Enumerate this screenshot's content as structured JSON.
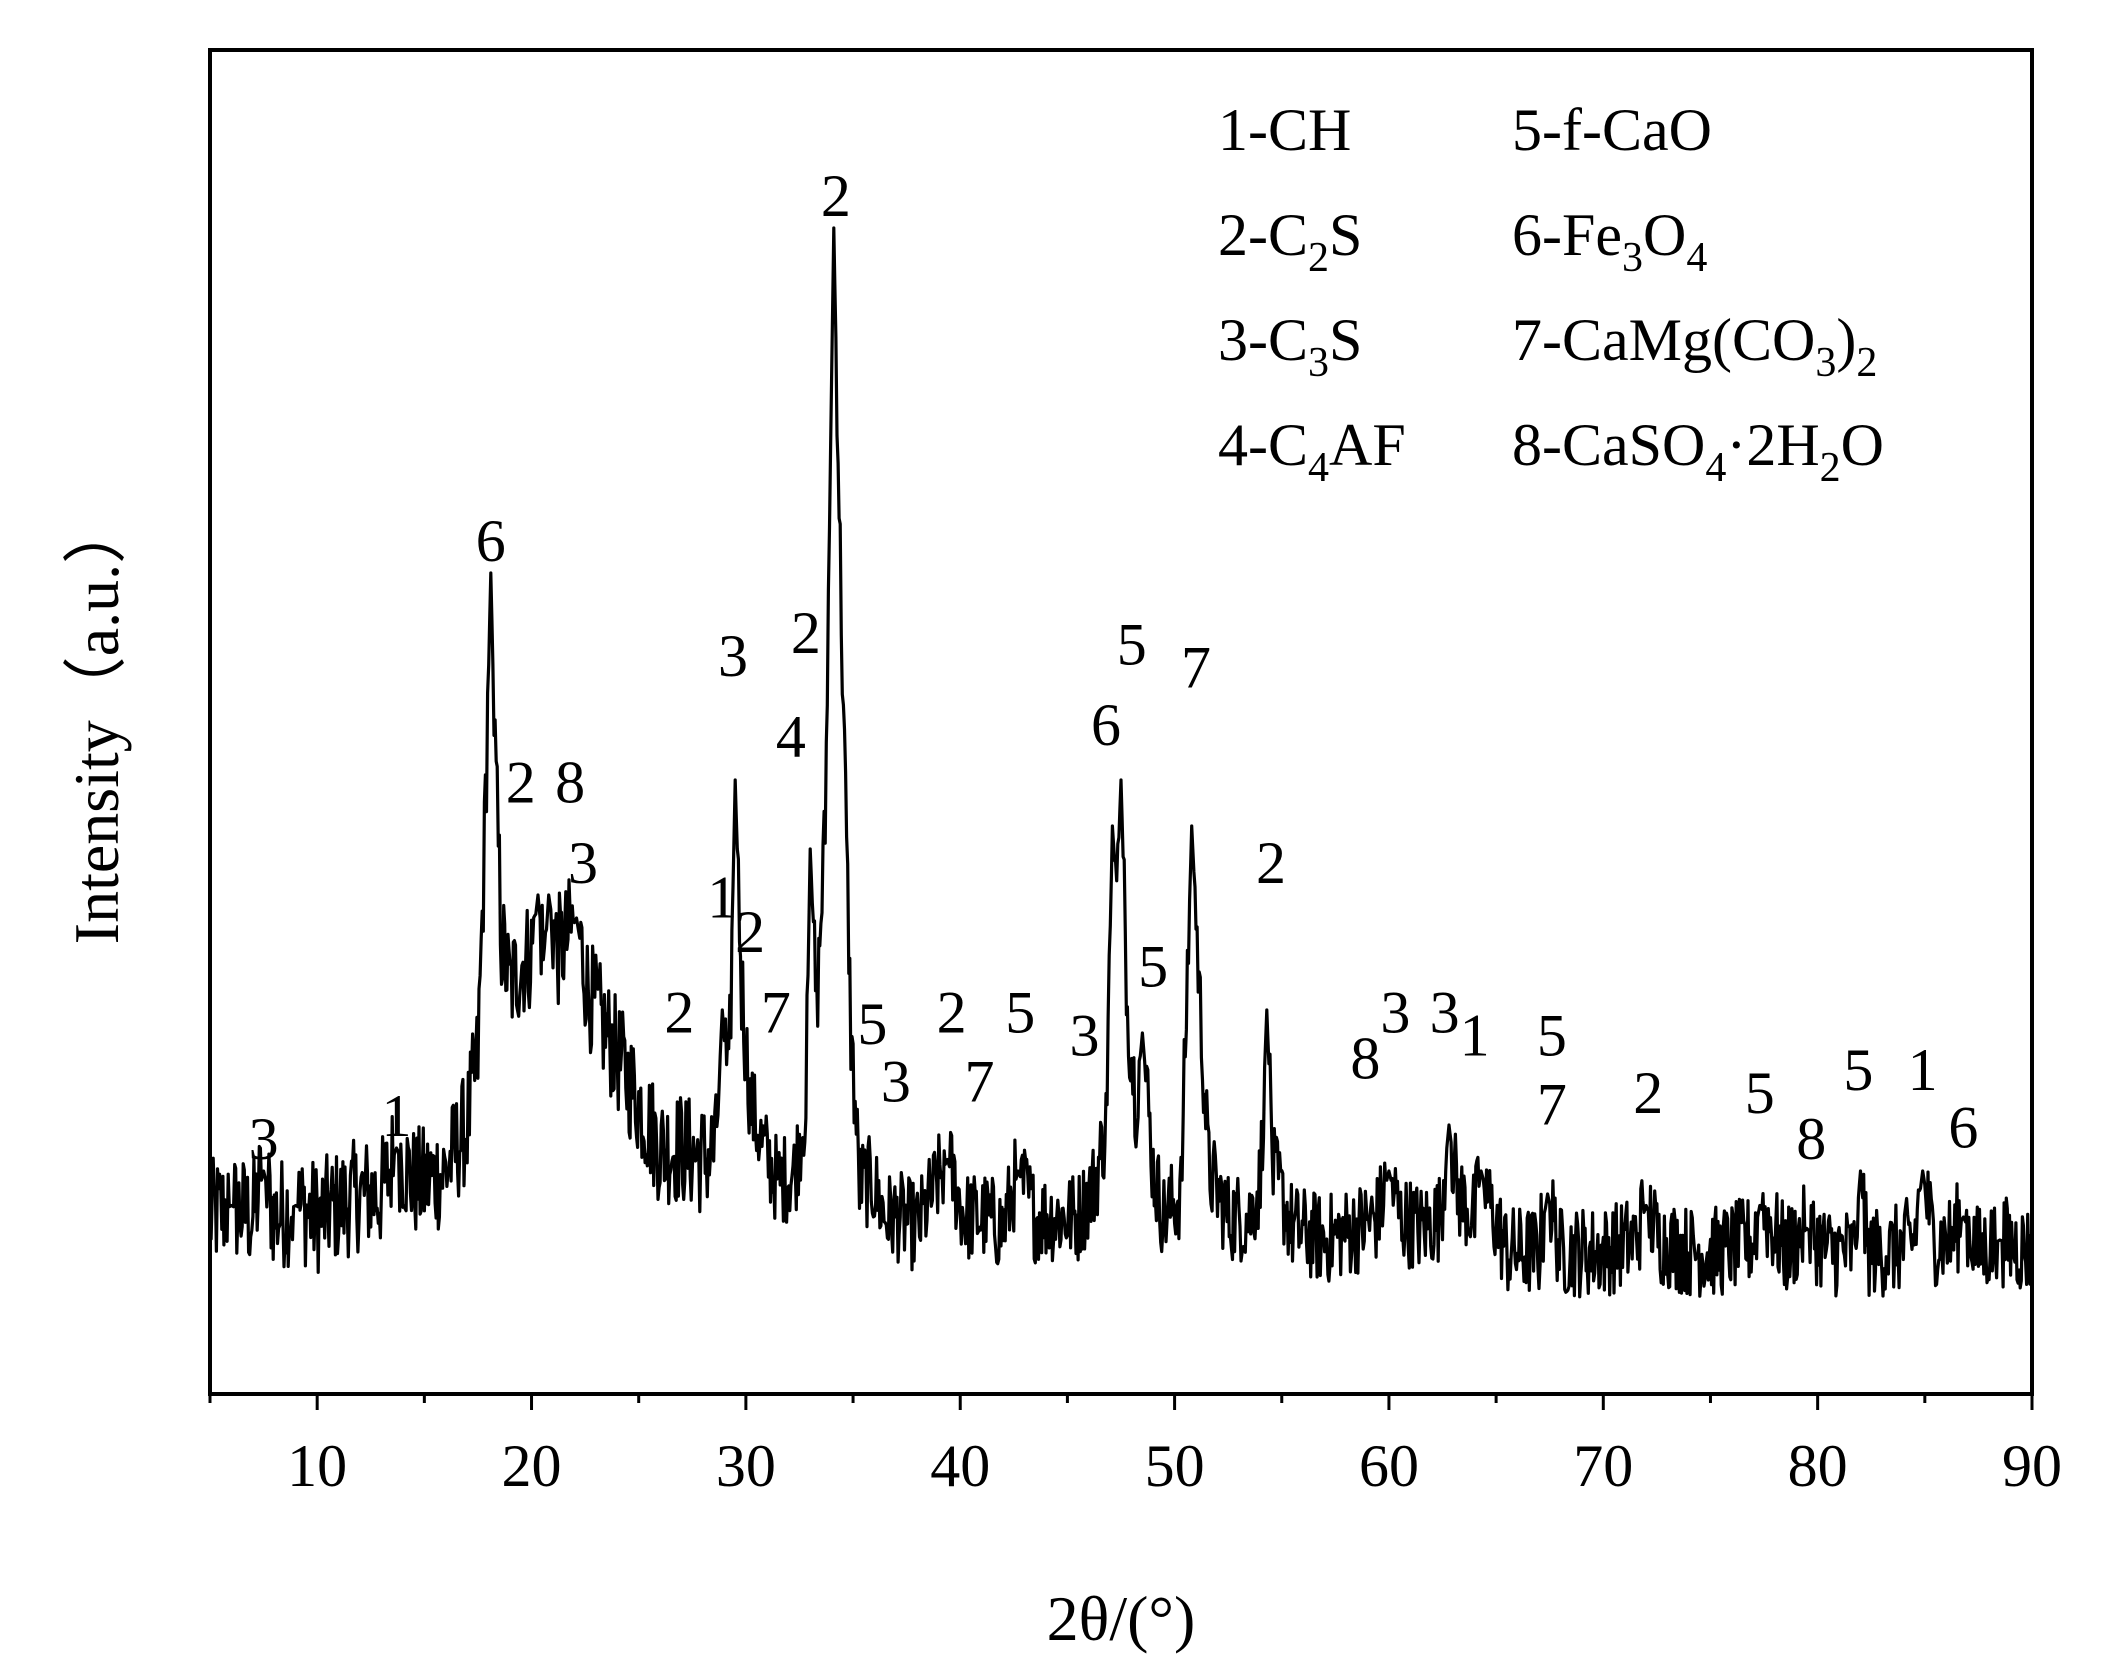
{
  "chart_data": {
    "type": "line",
    "title": "",
    "xlabel": "2θ/(°)",
    "ylabel": "Intensity（a.u.）",
    "xlim": [
      5,
      90
    ],
    "ylim": [
      0,
      100
    ],
    "x_ticks": [
      10,
      20,
      30,
      40,
      50,
      60,
      70,
      80,
      90
    ],
    "x_tick_labels": [
      "10",
      "20",
      "30",
      "40",
      "50",
      "60",
      "70",
      "80",
      "90"
    ],
    "y_ticks_shown": false,
    "grid": false,
    "legend_position": "top-right",
    "series": [
      {
        "points": [
          [
            5.0,
            12
          ],
          [
            6.0,
            13
          ],
          [
            7.0,
            12
          ],
          [
            7.5,
            16
          ],
          [
            8.0,
            12
          ],
          [
            9.0,
            13
          ],
          [
            10.0,
            12
          ],
          [
            11.0,
            13
          ],
          [
            12.0,
            14
          ],
          [
            13.0,
            14
          ],
          [
            13.7,
            18
          ],
          [
            14.5,
            15
          ],
          [
            15.0,
            15
          ],
          [
            16.0,
            16
          ],
          [
            17.0,
            20
          ],
          [
            17.5,
            26
          ],
          [
            17.8,
            44
          ],
          [
            18.1,
            68
          ],
          [
            18.3,
            52
          ],
          [
            18.6,
            36
          ],
          [
            19.0,
            32
          ],
          [
            19.5,
            34
          ],
          [
            20.0,
            35
          ],
          [
            20.3,
            40
          ],
          [
            20.6,
            34
          ],
          [
            20.8,
            40
          ],
          [
            21.2,
            35
          ],
          [
            21.6,
            36
          ],
          [
            22.1,
            38
          ],
          [
            22.6,
            32
          ],
          [
            23.0,
            30
          ],
          [
            24.0,
            26
          ],
          [
            25.0,
            22
          ],
          [
            26.0,
            18
          ],
          [
            27.0,
            18
          ],
          [
            28.0,
            17
          ],
          [
            28.6,
            18
          ],
          [
            28.9,
            30
          ],
          [
            29.2,
            22
          ],
          [
            29.5,
            50
          ],
          [
            29.8,
            32
          ],
          [
            30.2,
            22
          ],
          [
            30.8,
            18
          ],
          [
            31.5,
            15
          ],
          [
            32.3,
            16
          ],
          [
            32.8,
            22
          ],
          [
            33.0,
            44
          ],
          [
            33.3,
            30
          ],
          [
            33.7,
            46
          ],
          [
            34.1,
            98
          ],
          [
            34.5,
            60
          ],
          [
            34.9,
            28
          ],
          [
            35.3,
            15
          ],
          [
            35.9,
            15
          ],
          [
            36.5,
            12
          ],
          [
            37.2,
            12
          ],
          [
            38.0,
            11
          ],
          [
            39.4,
            17
          ],
          [
            40.2,
            12
          ],
          [
            41.2,
            12
          ],
          [
            42.0,
            11
          ],
          [
            42.7,
            16
          ],
          [
            43.5,
            12
          ],
          [
            44.5,
            12
          ],
          [
            45.5,
            12
          ],
          [
            46.3,
            15
          ],
          [
            46.8,
            20
          ],
          [
            47.1,
            46
          ],
          [
            47.3,
            40
          ],
          [
            47.5,
            50
          ],
          [
            47.8,
            30
          ],
          [
            48.2,
            22
          ],
          [
            48.5,
            28
          ],
          [
            49.0,
            16
          ],
          [
            49.5,
            12
          ],
          [
            50.3,
            14
          ],
          [
            50.8,
            46
          ],
          [
            51.2,
            30
          ],
          [
            51.6,
            16
          ],
          [
            52.5,
            12
          ],
          [
            53.5,
            12
          ],
          [
            54.0,
            15
          ],
          [
            54.3,
            30
          ],
          [
            54.6,
            16
          ],
          [
            55.5,
            11
          ],
          [
            57.0,
            10
          ],
          [
            58.5,
            11
          ],
          [
            59.5,
            12
          ],
          [
            60.0,
            16
          ],
          [
            60.5,
            12
          ],
          [
            61.5,
            11
          ],
          [
            62.4,
            12
          ],
          [
            62.8,
            20
          ],
          [
            63.2,
            14
          ],
          [
            64.0,
            12
          ],
          [
            64.3,
            16
          ],
          [
            64.7,
            13
          ],
          [
            65.5,
            9
          ],
          [
            67.0,
            9
          ],
          [
            67.4,
            14
          ],
          [
            68.0,
            9
          ],
          [
            70.0,
            9
          ],
          [
            71.5,
            10
          ],
          [
            72.0,
            13
          ],
          [
            72.6,
            10
          ],
          [
            74.0,
            9
          ],
          [
            75.5,
            9
          ],
          [
            77.0,
            10
          ],
          [
            77.3,
            13
          ],
          [
            78.5,
            9
          ],
          [
            79.5,
            11
          ],
          [
            80.5,
            9
          ],
          [
            81.7,
            9
          ],
          [
            82.0,
            16
          ],
          [
            82.3,
            9
          ],
          [
            83.5,
            9
          ],
          [
            84.5,
            10
          ],
          [
            84.9,
            16
          ],
          [
            85.4,
            10
          ],
          [
            86.2,
            10
          ],
          [
            86.8,
            12
          ],
          [
            87.5,
            9
          ],
          [
            88.5,
            10
          ],
          [
            90.0,
            9
          ]
        ]
      }
    ],
    "peak_labels": [
      {
        "text": "3",
        "x": 7.5,
        "y": 16
      },
      {
        "text": "1",
        "x": 13.7,
        "y": 18
      },
      {
        "text": "6",
        "x": 18.1,
        "y": 68
      },
      {
        "text": "2",
        "x": 19.5,
        "y": 47
      },
      {
        "text": "8",
        "x": 21.8,
        "y": 47
      },
      {
        "text": "3",
        "x": 22.4,
        "y": 40
      },
      {
        "text": "2",
        "x": 26.9,
        "y": 27
      },
      {
        "text": "1",
        "x": 28.9,
        "y": 37
      },
      {
        "text": "3",
        "x": 29.4,
        "y": 58
      },
      {
        "text": "2",
        "x": 30.2,
        "y": 34
      },
      {
        "text": "7",
        "x": 31.4,
        "y": 27
      },
      {
        "text": "4",
        "x": 32.1,
        "y": 51
      },
      {
        "text": "2",
        "x": 32.8,
        "y": 60
      },
      {
        "text": "2",
        "x": 34.2,
        "y": 98
      },
      {
        "text": "5",
        "x": 35.9,
        "y": 26
      },
      {
        "text": "3",
        "x": 37.0,
        "y": 21
      },
      {
        "text": "2",
        "x": 39.6,
        "y": 27
      },
      {
        "text": "7",
        "x": 40.9,
        "y": 21
      },
      {
        "text": "5",
        "x": 42.8,
        "y": 27
      },
      {
        "text": "3",
        "x": 45.8,
        "y": 25
      },
      {
        "text": "6",
        "x": 46.8,
        "y": 52
      },
      {
        "text": "5",
        "x": 48.0,
        "y": 59
      },
      {
        "text": "5",
        "x": 49.0,
        "y": 31
      },
      {
        "text": "7",
        "x": 51.0,
        "y": 57
      },
      {
        "text": "2",
        "x": 54.5,
        "y": 40
      },
      {
        "text": "8",
        "x": 58.9,
        "y": 23
      },
      {
        "text": "3",
        "x": 60.3,
        "y": 27
      },
      {
        "text": "3",
        "x": 62.6,
        "y": 27
      },
      {
        "text": "1",
        "x": 64.0,
        "y": 25
      },
      {
        "text": "5",
        "x": 67.6,
        "y": 25
      },
      {
        "text": "7",
        "x": 67.6,
        "y": 19
      },
      {
        "text": "2",
        "x": 72.1,
        "y": 20
      },
      {
        "text": "5",
        "x": 77.3,
        "y": 20
      },
      {
        "text": "8",
        "x": 79.7,
        "y": 16
      },
      {
        "text": "5",
        "x": 81.9,
        "y": 22
      },
      {
        "text": "1",
        "x": 84.9,
        "y": 22
      },
      {
        "text": "6",
        "x": 86.8,
        "y": 17
      }
    ],
    "legend": {
      "entries": [
        {
          "num": "1-",
          "base": "CH",
          "parts": [
            [
              "CH",
              ""
            ]
          ]
        },
        {
          "num": "2-",
          "base": "C2S",
          "parts": [
            [
              "C",
              ""
            ],
            [
              "2",
              "sub"
            ],
            [
              "S",
              ""
            ]
          ]
        },
        {
          "num": "3-",
          "base": "C3S",
          "parts": [
            [
              "C",
              ""
            ],
            [
              "3",
              "sub"
            ],
            [
              "S",
              ""
            ]
          ]
        },
        {
          "num": "4-",
          "base": "C4AF",
          "parts": [
            [
              "C",
              ""
            ],
            [
              "4",
              "sub"
            ],
            [
              "AF",
              ""
            ]
          ]
        },
        {
          "num": "5-",
          "base": "f-CaO",
          "parts": [
            [
              "f-CaO",
              ""
            ]
          ]
        },
        {
          "num": "6-",
          "base": "Fe3O4",
          "parts": [
            [
              "Fe",
              ""
            ],
            [
              "3",
              "sub"
            ],
            [
              "O",
              ""
            ],
            [
              "4",
              "sub"
            ]
          ]
        },
        {
          "num": "7-",
          "base": "CaMg(CO3)2",
          "parts": [
            [
              "CaMg(CO",
              ""
            ],
            [
              "3",
              "sub"
            ],
            [
              ")",
              ""
            ],
            [
              "2",
              "sub"
            ]
          ]
        },
        {
          "num": "8-",
          "base": "CaSO4·2H2O",
          "parts": [
            [
              "CaSO",
              ""
            ],
            [
              "4",
              "sub"
            ],
            [
              "·2H",
              ""
            ],
            [
              "2",
              "sub"
            ],
            [
              "O",
              ""
            ]
          ]
        }
      ]
    }
  }
}
